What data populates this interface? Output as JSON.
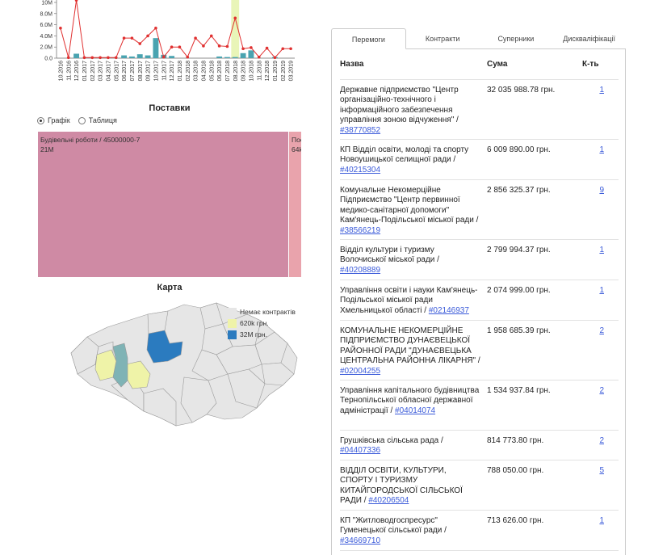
{
  "colors": {
    "accent_link": "#3a5ad9",
    "line_series": "#e03030",
    "bar_series": "#4aa3b0",
    "highlight_band": "#e9f5b8",
    "treemap_main": "#cf8aa4",
    "treemap_second": "#e9a3ac",
    "map_none": "#e6e6e6",
    "map_low": "#eff3a8",
    "map_mid": "#7fb3b5",
    "map_high": "#2b7bbf"
  },
  "chart_data": {
    "type": "bar",
    "title": "",
    "ylim": [
      0,
      10
    ],
    "yticks": [
      "0.0",
      "2.0M",
      "4.0M",
      "6.0M",
      "8.0M",
      "10M"
    ],
    "categories": [
      "10.2016",
      "11.2016",
      "12.2016",
      "01.2017",
      "02.2017",
      "03.2017",
      "04.2017",
      "05.2017",
      "06.2017",
      "07.2017",
      "08.2017",
      "09.2017",
      "10.2017",
      "11.2017",
      "12.2017",
      "01.2018",
      "02.2018",
      "03.2018",
      "04.2018",
      "05.2018",
      "06.2018",
      "07.2018",
      "08.2018",
      "09.2018",
      "10.2018",
      "11.2018",
      "12.2018",
      "01.2019",
      "02.2019",
      "03.2019"
    ],
    "highlight_category": "08.2018",
    "series": [
      {
        "values": [
          0,
          0,
          0.8,
          0,
          0,
          0,
          0,
          0,
          0.5,
          0.3,
          0.7,
          0.5,
          3.6,
          0.6,
          0.4,
          0,
          0,
          0,
          0,
          0,
          0.3,
          0.2,
          0.2,
          0.9,
          1.4,
          0,
          0,
          0.2,
          0,
          0
        ]
      },
      {
        "values": [
          5.4,
          0.1,
          10.4,
          0.1,
          0.1,
          0.1,
          0.1,
          0.1,
          3.6,
          3.6,
          2.6,
          4.0,
          5.4,
          0.2,
          2.0,
          2.0,
          0.2,
          3.6,
          2.2,
          4.0,
          2.2,
          2.1,
          7.2,
          1.7,
          1.9,
          0.2,
          1.8,
          0.1,
          1.7,
          1.7
        ]
      }
    ]
  },
  "supplies": {
    "title": "Поставки",
    "radio_graph": "Графік",
    "radio_table": "Таблиця",
    "treemap": [
      {
        "label": "Будівельні роботи / 45000000-7",
        "value_text": "21M"
      },
      {
        "label": "Пос",
        "value_text": "64k"
      }
    ]
  },
  "map": {
    "title": "Карта",
    "legend": [
      {
        "label": "Немає контрактів"
      },
      {
        "label": "620k грн."
      },
      {
        "label": "32M грн."
      }
    ]
  },
  "tabs": {
    "items": [
      "Перемоги",
      "Контракти",
      "Суперники",
      "Дискваліфікації"
    ],
    "active": "Перемоги"
  },
  "winners": {
    "headers": {
      "name": "Назва",
      "sum": "Сума",
      "count": "К-ть"
    },
    "rows": [
      {
        "name": "Державне підприємство \"Центр організаційно-технічного і інформаційного забезпечення управління зоною відчуження\" /",
        "code": "#38770852",
        "sum": "32 035 988.78 грн.",
        "count": "1"
      },
      {
        "name": "КП Відділ освіти, молоді та спорту Новоушицької селищної ради /",
        "code": "#40215304",
        "sum": "6 009 890.00 грн.",
        "count": "1"
      },
      {
        "name": "Комунальне Некомерційне Підприємство \"Центр первинної медико-санітарної допомоги\" Кам'янець-Подільської міської ради /",
        "code": "#38566219",
        "sum": "2 856 325.37 грн.",
        "count": "9"
      },
      {
        "name": "Відділ культури і туризму Волочиської міської ради /",
        "code": "#40208889",
        "sum": "2 799 994.37 грн.",
        "count": "1"
      },
      {
        "name": "Управління освіти і науки Кам'янець-Подільської міської ради Хмельницької області /",
        "code": "#02146937",
        "sum": "2 074 999.00 грн.",
        "count": "1"
      },
      {
        "name": "КОМУНАЛЬНЕ НЕКОМЕРЦІЙНЕ ПІДПРИЄМСТВО ДУНАЄВЕЦЬКОЇ РАЙОННОЇ РАДИ \"ДУНАЄВЕЦЬКА ЦЕНТРАЛЬНА РАЙОННА ЛІКАРНЯ\" /",
        "code": "#02004255",
        "sum": "1 958 685.39 грн.",
        "count": "2"
      },
      {
        "name": "Управління капітального будівництва Тернопільської обласної державної адміністрації /",
        "code": "#04014074",
        "sum": "1 534 937.84 грн.",
        "count": "2"
      },
      {
        "name": "Грушківська сільська рада /",
        "code": "#04407336",
        "sum": "814 773.80 грн.",
        "count": "2"
      },
      {
        "name": "ВІДДІЛ ОСВІТИ, КУЛЬТУРИ, СПОРТУ І ТУРИЗМУ КИТАЙГОРОДСЬКОЇ СІЛЬСЬКОЇ РАДИ /",
        "code": "#40206504",
        "sum": "788 050.00 грн.",
        "count": "5"
      },
      {
        "name": "КП \"Житловодгоспресурс\" Гуменецької сільської ради /",
        "code": "#34669710",
        "sum": "713 626.00 грн.",
        "count": "1"
      }
    ]
  }
}
